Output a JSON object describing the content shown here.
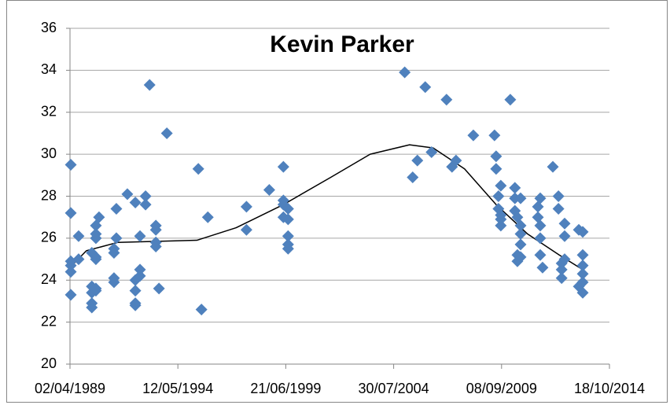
{
  "chart_data": {
    "type": "scatter",
    "title": "Kevin Parker",
    "color": "#4f81bd",
    "grid": true,
    "ylim": [
      20,
      36
    ],
    "yticks": [
      20,
      22,
      24,
      26,
      28,
      30,
      32,
      34,
      36
    ],
    "xlim": [
      "1989-04-02",
      "2014-10-18"
    ],
    "xticks": [
      {
        "value": "1989-04-02",
        "label": "02/04/1989"
      },
      {
        "value": "1994-05-12",
        "label": "12/05/1994"
      },
      {
        "value": "1999-06-21",
        "label": "21/06/1999"
      },
      {
        "value": "2004-07-30",
        "label": "30/07/2004"
      },
      {
        "value": "2009-09-08",
        "label": "08/09/2009"
      },
      {
        "value": "2014-10-18",
        "label": "18/10/2014"
      }
    ],
    "x": [
      "1989-04-16",
      "1989-04-16",
      "1989-04-16",
      "1989-04-16",
      "1989-04-16",
      "1989-04-16",
      "1989-08-29",
      "1989-08-29",
      "1990-04-15",
      "1990-04-15",
      "1990-04-15",
      "1990-04-15",
      "1990-04-15",
      "1990-06-24",
      "1990-06-24",
      "1990-06-24",
      "1990-06-24",
      "1990-06-24",
      "1990-06-24",
      "1990-06-24",
      "1990-08-17",
      "1991-05-03",
      "1991-05-03",
      "1991-05-03",
      "1991-05-03",
      "1991-06-13",
      "1991-06-13",
      "1991-12-20",
      "1992-05-06",
      "1992-05-06",
      "1992-05-06",
      "1992-05-06",
      "1992-05-06",
      "1992-07-26",
      "1992-07-26",
      "1992-07-26",
      "1992-10-30",
      "1992-10-30",
      "1993-01-08",
      "1993-04-26",
      "1993-04-26",
      "1993-04-26",
      "1993-04-26",
      "1993-06-19",
      "1993-11-02",
      "1995-05-01",
      "1995-06-24",
      "1995-10-12",
      "1997-08-10",
      "1997-08-10",
      "1998-09-09",
      "1999-05-11",
      "1999-05-11",
      "1999-05-11",
      "1999-05-11",
      "1999-07-31",
      "1999-07-31",
      "1999-07-31",
      "1999-07-31",
      "1999-07-31",
      "2005-02-06",
      "2005-06-24",
      "2005-09-13",
      "2006-01-27",
      "2006-05-16",
      "2007-01-30",
      "2007-05-05",
      "2007-07-13",
      "2008-05-08",
      "2009-05-09",
      "2009-06-06",
      "2009-06-06",
      "2009-07-16",
      "2009-07-16",
      "2009-08-26",
      "2009-08-26",
      "2009-08-26",
      "2009-08-26",
      "2010-02-06",
      "2010-04-27",
      "2010-04-27",
      "2010-04-27",
      "2010-06-09",
      "2010-06-09",
      "2010-06-09",
      "2010-08-03",
      "2010-08-03",
      "2010-08-03",
      "2010-08-03",
      "2010-08-03",
      "2011-05-30",
      "2011-05-30",
      "2011-07-09",
      "2011-07-09",
      "2011-07-09",
      "2011-07-09",
      "2011-08-18",
      "2012-02-12",
      "2012-05-19",
      "2012-05-19",
      "2012-07-13",
      "2012-07-13",
      "2012-07-13",
      "2012-09-03",
      "2012-09-03",
      "2012-09-03",
      "2013-05-06",
      "2013-05-06",
      "2013-07-13",
      "2013-07-13",
      "2013-07-13",
      "2013-07-13",
      "2013-07-13",
      "2013-07-13"
    ],
    "values": [
      29.5,
      27.2,
      24.9,
      24.7,
      24.4,
      23.3,
      26.1,
      25.0,
      25.3,
      23.7,
      22.7,
      22.9,
      23.4,
      26.6,
      26.2,
      26.0,
      25.1,
      25.0,
      23.5,
      23.6,
      27.0,
      25.5,
      25.3,
      24.1,
      23.9,
      26.0,
      27.4,
      28.1,
      27.7,
      24.0,
      23.5,
      22.9,
      22.8,
      26.1,
      24.5,
      24.2,
      28.0,
      27.6,
      33.3,
      26.6,
      26.4,
      25.8,
      25.6,
      23.6,
      31.0,
      29.3,
      22.6,
      27.0,
      27.5,
      26.4,
      28.3,
      29.4,
      27.8,
      27.6,
      27.0,
      27.4,
      26.9,
      26.1,
      25.7,
      25.5,
      33.9,
      28.9,
      29.7,
      33.2,
      30.1,
      32.6,
      29.4,
      29.7,
      30.9,
      30.9,
      29.9,
      29.3,
      28.0,
      27.4,
      28.5,
      27.1,
      26.9,
      26.6,
      32.6,
      28.4,
      27.9,
      27.3,
      25.2,
      24.9,
      27.0,
      27.9,
      26.6,
      26.2,
      25.7,
      25.1,
      27.5,
      27.0,
      27.9,
      26.6,
      26.0,
      25.2,
      24.6,
      29.4,
      28.0,
      27.4,
      24.1,
      24.5,
      24.8,
      26.7,
      26.1,
      25.0,
      26.4,
      23.7,
      26.3,
      25.2,
      24.7,
      24.3,
      23.9,
      23.4
    ],
    "trend": {
      "color": "#000000",
      "x": [
        "1989-04-02",
        "1990-01-10",
        "1991-07-08",
        "1993-05-21",
        "1995-04-05",
        "1997-02-13",
        "1999-05-11",
        "2001-08-07",
        "2003-06-19",
        "2005-04-30",
        "2006-06-13",
        "2007-12-08",
        "2009-06-06",
        "2010-12-02",
        "2012-06-02",
        "2013-07-13"
      ],
      "values": [
        24.6,
        25.4,
        25.8,
        25.85,
        25.9,
        26.5,
        27.6,
        28.9,
        30.0,
        30.45,
        30.3,
        29.3,
        27.6,
        26.2,
        25.2,
        24.5
      ]
    }
  }
}
